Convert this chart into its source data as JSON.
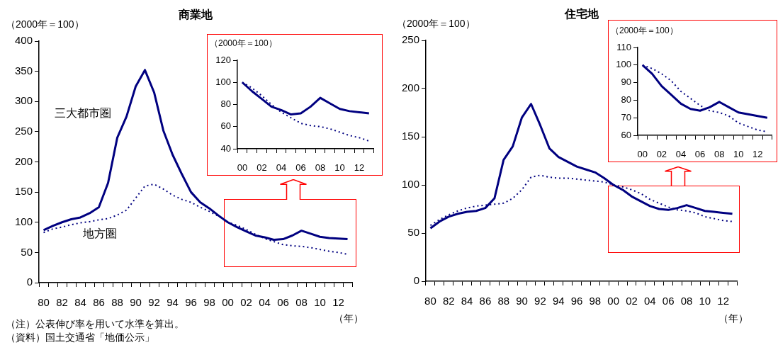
{
  "chart_data": [
    {
      "type": "line",
      "title": "商業地",
      "ylabel": "（2000年＝100）",
      "xlabel": "（年）",
      "categories": [
        "80",
        null,
        "82",
        null,
        "84",
        null,
        "86",
        null,
        "88",
        null,
        "90",
        null,
        "92",
        null,
        "94",
        null,
        "96",
        null,
        "98",
        null,
        "00",
        null,
        "02",
        null,
        "04",
        null,
        "06",
        null,
        "08",
        null,
        "10",
        null,
        "12",
        null
      ],
      "series": [
        {
          "name": "三大都市圏",
          "color": "#000080",
          "line_style": "solid",
          "values": [
            87,
            94,
            100,
            105,
            108,
            115,
            125,
            165,
            240,
            275,
            325,
            352,
            315,
            252,
            212,
            180,
            150,
            133,
            123,
            111,
            100,
            92,
            85,
            78,
            75,
            71,
            72,
            78,
            86,
            81,
            76,
            74,
            73,
            72
          ]
        },
        {
          "name": "地方圏",
          "color": "#000080",
          "line_style": "dotted",
          "values": [
            83,
            89,
            92,
            96,
            99,
            101,
            104,
            106,
            112,
            120,
            140,
            160,
            163,
            155,
            145,
            138,
            133,
            125,
            118,
            110,
            100,
            95,
            88,
            80,
            73,
            68,
            63,
            61,
            60,
            58,
            55,
            52,
            50,
            47
          ]
        }
      ],
      "ylim": [
        0,
        400
      ],
      "yticks": [
        0,
        50,
        100,
        150,
        200,
        250,
        300,
        350,
        400
      ],
      "grid": false,
      "legend": false,
      "marker": "none",
      "annotations": [
        "（注）公表伸び率を用いて水準を算出。",
        "（資料）国土交通省「地価公示」"
      ]
    },
    {
      "type": "line",
      "ylabel": "（2000年＝100）",
      "categories": [
        "00",
        null,
        "02",
        null,
        "04",
        null,
        "06",
        null,
        "08",
        null,
        "10",
        null,
        "12",
        null
      ],
      "series": [
        {
          "color": "#000080",
          "line_style": "solid",
          "values": [
            100,
            92,
            85,
            78,
            75,
            71,
            72,
            78,
            86,
            81,
            76,
            74,
            73,
            72
          ]
        },
        {
          "color": "#000080",
          "line_style": "dotted",
          "values": [
            100,
            95,
            88,
            80,
            73,
            68,
            63,
            61,
            60,
            58,
            55,
            52,
            50,
            47
          ]
        }
      ],
      "ylim": [
        40,
        120
      ],
      "yticks": [
        40,
        60,
        80,
        100,
        120
      ],
      "grid": false,
      "legend": false,
      "marker": "none"
    },
    {
      "type": "line",
      "title": "住宅地",
      "ylabel": "（2000年＝100）",
      "xlabel": "（年）",
      "categories": [
        "80",
        null,
        "82",
        null,
        "84",
        null,
        "86",
        null,
        "88",
        null,
        "90",
        null,
        "92",
        null,
        "94",
        null,
        "96",
        null,
        "98",
        null,
        "00",
        null,
        "02",
        null,
        "04",
        null,
        "06",
        null,
        "08",
        null,
        "10",
        null,
        "12",
        null
      ],
      "series": [
        {
          "color": "#000080",
          "line_style": "solid",
          "values": [
            55,
            62,
            67,
            70,
            72,
            73,
            76,
            86,
            126,
            140,
            170,
            184,
            162,
            138,
            129,
            124,
            119,
            116,
            113,
            107,
            100,
            95,
            88,
            83,
            78,
            75,
            74,
            76,
            79,
            76,
            73,
            72,
            71,
            70
          ]
        },
        {
          "color": "#000080",
          "line_style": "dotted",
          "values": [
            58,
            64,
            69,
            73,
            76,
            78,
            79,
            80,
            81,
            86,
            95,
            108,
            110,
            108,
            107,
            107,
            106,
            105,
            104,
            103,
            100,
            98,
            95,
            91,
            85,
            81,
            77,
            74,
            73,
            71,
            67,
            65,
            63,
            62
          ]
        }
      ],
      "ylim": [
        0,
        250
      ],
      "yticks": [
        0,
        50,
        100,
        150,
        200,
        250
      ],
      "grid": false,
      "legend": false,
      "marker": "none"
    },
    {
      "type": "line",
      "ylabel": "（2000年＝100）",
      "categories": [
        "00",
        null,
        "02",
        null,
        "04",
        null,
        "06",
        null,
        "08",
        null,
        "10",
        null,
        "12",
        null
      ],
      "series": [
        {
          "color": "#000080",
          "line_style": "solid",
          "values": [
            100,
            95,
            88,
            83,
            78,
            75,
            74,
            76,
            79,
            76,
            73,
            72,
            71,
            70
          ]
        },
        {
          "color": "#000080",
          "line_style": "dotted",
          "values": [
            100,
            98,
            95,
            91,
            85,
            81,
            77,
            74,
            73,
            71,
            67,
            65,
            63,
            62
          ]
        }
      ],
      "ylim": [
        60,
        110
      ],
      "yticks": [
        60,
        70,
        80,
        90,
        100,
        110
      ],
      "grid": false,
      "legend": false,
      "marker": "none"
    }
  ]
}
